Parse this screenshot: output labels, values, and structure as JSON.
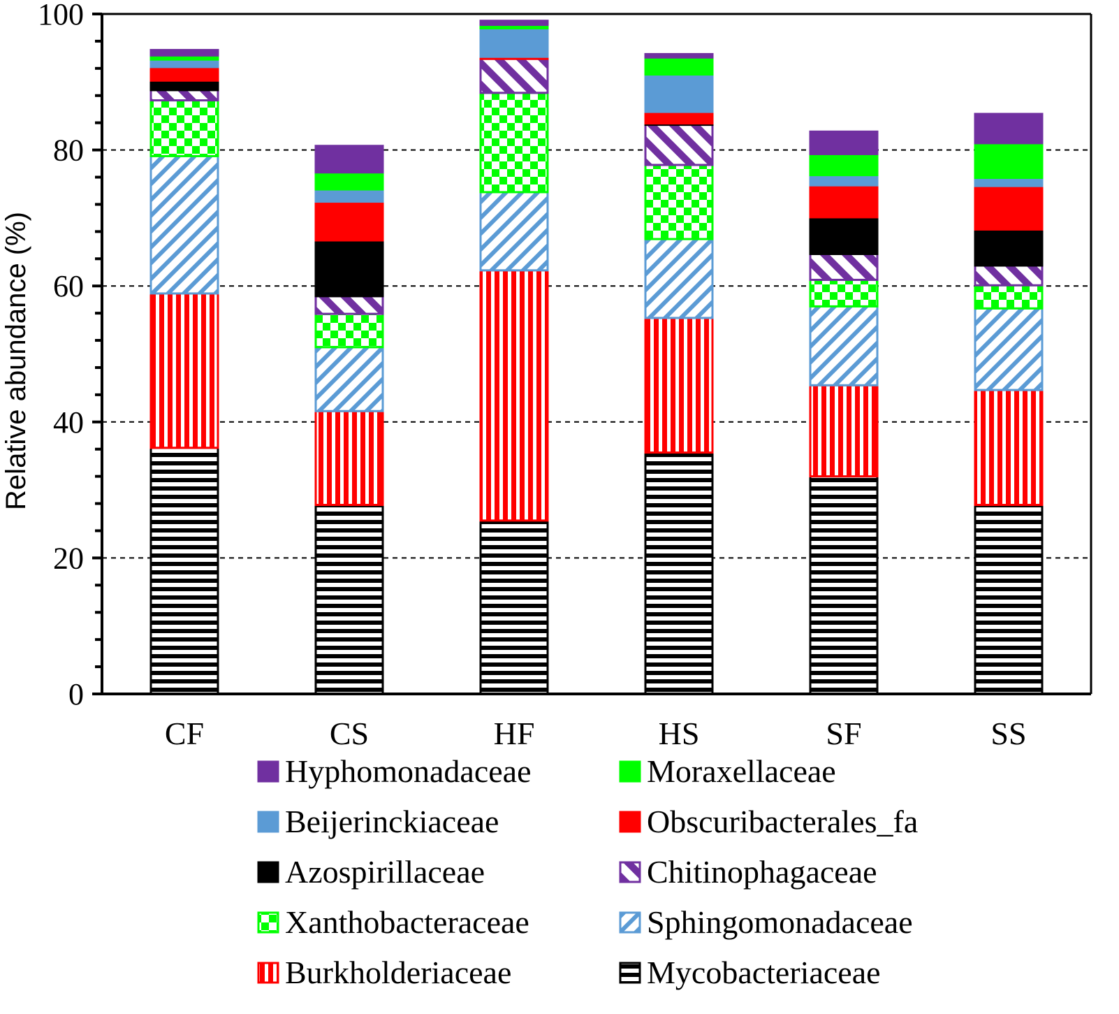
{
  "chart_data": {
    "type": "bar",
    "stacked": true,
    "title": "",
    "xlabel": "",
    "ylabel": "Relative abundance (%)",
    "ylim": [
      0,
      100
    ],
    "yticks": [
      0,
      20,
      40,
      60,
      80,
      100
    ],
    "yticks_minor_step": 4,
    "grid": "dashed horizontal at major ticks",
    "legend_position": "bottom",
    "categories": [
      "CF",
      "CS",
      "HF",
      "HS",
      "SF",
      "SS"
    ],
    "series": [
      {
        "name": "Mycobacteriaceae",
        "color": "#000000",
        "pattern": "hstripe",
        "values": [
          36.2,
          27.8,
          25.5,
          35.5,
          32.0,
          27.8
        ]
      },
      {
        "name": "Burkholderiaceae",
        "color": "#ff0000",
        "pattern": "vstripe",
        "values": [
          22.7,
          13.8,
          36.8,
          19.8,
          13.4,
          16.9
        ]
      },
      {
        "name": "Sphingomonadaceae",
        "color": "#5b9bd5",
        "pattern": "diag",
        "values": [
          20.2,
          9.4,
          11.5,
          11.6,
          11.6,
          12.0
        ]
      },
      {
        "name": "Xanthobacteraceae",
        "color": "#00ff00",
        "pattern": "checker",
        "values": [
          8.2,
          4.9,
          14.6,
          10.9,
          3.9,
          3.4
        ]
      },
      {
        "name": "Chitinophagaceae",
        "color": "#7030a0",
        "pattern": "diagrev",
        "values": [
          1.5,
          2.6,
          5.0,
          5.9,
          3.8,
          2.9
        ]
      },
      {
        "name": "Azospirillaceae",
        "color": "#000000",
        "pattern": "solid",
        "values": [
          1.4,
          8.2,
          0.0,
          0.2,
          5.4,
          5.3
        ]
      },
      {
        "name": "Obscuribacterales_fa",
        "color": "#ff0000",
        "pattern": "solid",
        "values": [
          2.0,
          5.7,
          0.3,
          1.7,
          4.7,
          6.4
        ]
      },
      {
        "name": "Beijerinckiaceae",
        "color": "#5b9bd5",
        "pattern": "solid",
        "values": [
          1.1,
          1.8,
          4.2,
          5.5,
          1.5,
          1.2
        ]
      },
      {
        "name": "Moraxellaceae",
        "color": "#00ff00",
        "pattern": "solid",
        "values": [
          0.6,
          2.5,
          0.5,
          2.5,
          3.1,
          5.1
        ]
      },
      {
        "name": "Hyphomonadaceae",
        "color": "#7030a0",
        "pattern": "solid",
        "values": [
          0.8,
          3.9,
          0.6,
          0.5,
          3.3,
          4.3
        ]
      }
    ],
    "legend_order": [
      "Hyphomonadaceae",
      "Moraxellaceae",
      "Beijerinckiaceae",
      "Obscuribacterales_fa",
      "Azospirillaceae",
      "Chitinophagaceae",
      "Xanthobacteraceae",
      "Sphingomonadaceae",
      "Burkholderiaceae",
      "Mycobacteriaceae"
    ]
  }
}
